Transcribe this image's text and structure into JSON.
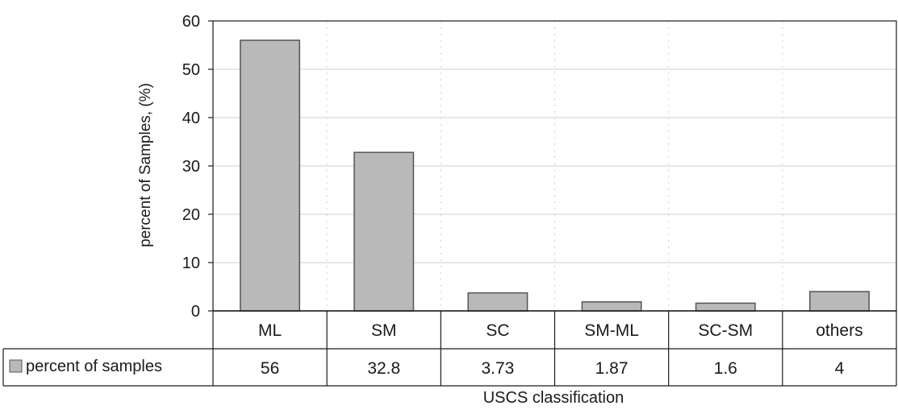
{
  "chart_data": {
    "type": "bar",
    "categories": [
      "ML",
      "SM",
      "SC",
      "SM-ML",
      "SC-SM",
      "others"
    ],
    "series": [
      {
        "name": "percent of samples",
        "values": [
          56,
          32.8,
          3.73,
          1.87,
          1.6,
          4
        ],
        "value_labels": [
          "56",
          "32.8",
          "3.73",
          "1.87",
          "1.6",
          "4"
        ]
      }
    ],
    "ylabel": "percent of Samples, (%)",
    "xlabel": "USCS classification",
    "ylim": [
      0,
      60
    ],
    "yticks": [
      0,
      10,
      20,
      30,
      40,
      50,
      60
    ],
    "grid": true,
    "legend_placement": "data-table-left",
    "colors": {
      "bar_fill": "#b9b9b9",
      "bar_stroke": "#555555",
      "axis": "#1a1a1a",
      "grid": "#cfcfcf"
    }
  }
}
